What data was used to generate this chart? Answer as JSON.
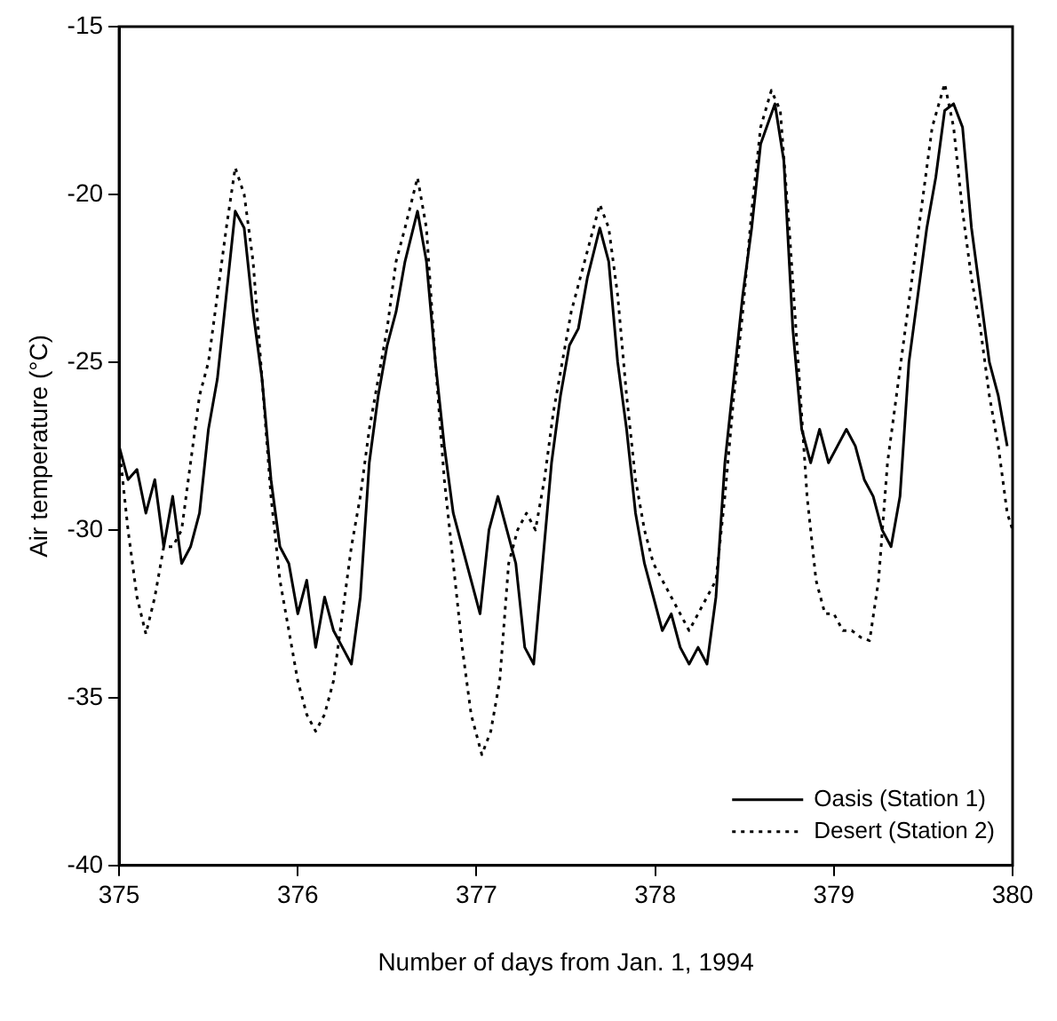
{
  "chart_data": {
    "type": "line",
    "xlabel": "Number of days from Jan. 1, 1994",
    "ylabel": "Air temperature (°C)",
    "xlim": [
      375,
      380
    ],
    "xticks": [
      375,
      376,
      377,
      378,
      379,
      380
    ],
    "ylim": [
      -40,
      -15
    ],
    "yticks": [
      -40,
      -35,
      -30,
      -25,
      -20,
      -15
    ],
    "grid": false,
    "legend": "bottom right",
    "marker": "none",
    "series": [
      {
        "name": "Oasis (Station 1)",
        "color": "#000000",
        "line_style": "solid",
        "x": [
          375,
          375.05,
          375.1,
          375.15,
          375.2,
          375.25,
          375.3,
          375.35,
          375.4,
          375.45,
          375.5,
          375.55,
          375.6,
          375.65,
          375.7,
          375.75,
          375.8,
          375.85,
          375.9,
          375.95,
          376,
          376.05,
          376.1,
          376.15,
          376.2,
          376.25,
          376.3,
          376.35,
          376.4,
          376.45,
          376.5,
          376.55,
          376.6,
          376.67,
          376.72,
          376.77,
          376.82,
          376.87,
          376.92,
          376.97,
          377.02,
          377.07,
          377.12,
          377.17,
          377.22,
          377.27,
          377.32,
          377.37,
          377.42,
          377.47,
          377.52,
          377.57,
          377.62,
          377.69,
          377.74,
          377.79,
          377.84,
          377.89,
          377.94,
          377.99,
          378.04,
          378.09,
          378.14,
          378.19,
          378.24,
          378.29,
          378.34,
          378.39,
          378.44,
          378.49,
          378.54,
          378.59,
          378.67,
          378.72,
          378.77,
          378.82,
          378.87,
          378.92,
          378.97,
          379.02,
          379.07,
          379.12,
          379.17,
          379.22,
          379.27,
          379.32,
          379.37,
          379.42,
          379.47,
          379.52,
          379.57,
          379.62,
          379.67,
          379.72,
          379.77,
          379.82,
          379.87,
          379.92,
          379.97
        ],
        "values": [
          -27.5,
          -28.5,
          -28.2,
          -29.5,
          -28.5,
          -30.5,
          -29,
          -31,
          -30.5,
          -29.5,
          -27,
          -25.5,
          -23,
          -20.5,
          -21,
          -23.5,
          -25.5,
          -28.5,
          -30.5,
          -31,
          -32.5,
          -31.5,
          -33.5,
          -32,
          -33,
          -33.5,
          -34,
          -32,
          -28,
          -26,
          -24.5,
          -23.5,
          -22,
          -20.5,
          -22,
          -25,
          -27.5,
          -29.5,
          -30.5,
          -31.5,
          -32.5,
          -30,
          -29,
          -30,
          -31,
          -33.5,
          -34,
          -31,
          -28,
          -26,
          -24.5,
          -24,
          -22.5,
          -21,
          -22,
          -25,
          -27,
          -29.5,
          -31,
          -32,
          -33,
          -32.5,
          -33.5,
          -34,
          -33.5,
          -34,
          -32,
          -28,
          -25.5,
          -23,
          -21,
          -18.5,
          -17.3,
          -19,
          -24,
          -27,
          -28,
          -27,
          -28,
          -27.5,
          -27,
          -27.5,
          -28.5,
          -29,
          -30,
          -30.5,
          -29,
          -25,
          -23,
          -21,
          -19.5,
          -17.5,
          -17.3,
          -18,
          -21,
          -23,
          -25,
          -26,
          -27.5
        ]
      },
      {
        "name": "Desert (Station 2)",
        "color": "#000000",
        "line_style": "dotted",
        "x": [
          375,
          375.05,
          375.1,
          375.15,
          375.2,
          375.25,
          375.3,
          375.35,
          375.4,
          375.45,
          375.5,
          375.55,
          375.6,
          375.65,
          375.7,
          375.75,
          375.8,
          375.85,
          375.9,
          375.95,
          376,
          376.05,
          376.1,
          376.15,
          376.2,
          376.25,
          376.3,
          376.35,
          376.4,
          376.45,
          376.5,
          376.55,
          376.6,
          376.67,
          376.72,
          376.77,
          376.82,
          376.87,
          376.92,
          376.97,
          377.03,
          377.08,
          377.13,
          377.18,
          377.23,
          377.28,
          377.33,
          377.38,
          377.43,
          377.48,
          377.53,
          377.58,
          377.63,
          377.69,
          377.74,
          377.79,
          377.84,
          377.89,
          377.94,
          377.99,
          378.04,
          378.09,
          378.14,
          378.19,
          378.24,
          378.29,
          378.34,
          378.39,
          378.44,
          378.49,
          378.54,
          378.59,
          378.65,
          378.7,
          378.75,
          378.8,
          378.85,
          378.9,
          378.95,
          379,
          379.05,
          379.1,
          379.15,
          379.2,
          379.25,
          379.3,
          379.35,
          379.4,
          379.45,
          379.5,
          379.55,
          379.62,
          379.67,
          379.72,
          379.77,
          379.82,
          379.87,
          379.92,
          379.97,
          380
        ],
        "values": [
          -27.5,
          -30,
          -32,
          -33.1,
          -32,
          -30.5,
          -30.5,
          -30,
          -28,
          -26,
          -25,
          -23,
          -21,
          -19.2,
          -20,
          -22,
          -25.5,
          -29,
          -31.5,
          -33,
          -34.5,
          -35.5,
          -36,
          -35.5,
          -34.5,
          -32.5,
          -30.5,
          -29,
          -27,
          -25.5,
          -24,
          -22,
          -21,
          -19.5,
          -21,
          -25,
          -28.5,
          -31,
          -33.5,
          -35.5,
          -36.7,
          -36,
          -34.5,
          -31,
          -30,
          -29.5,
          -30,
          -28.5,
          -26.5,
          -25,
          -23.5,
          -22.5,
          -21.5,
          -20.3,
          -21,
          -23,
          -26,
          -28.5,
          -30,
          -31,
          -31.5,
          -32,
          -32.5,
          -33,
          -32.5,
          -32,
          -31.5,
          -29,
          -26,
          -23.5,
          -20.5,
          -18,
          -16.9,
          -17.5,
          -21,
          -25,
          -29,
          -31.5,
          -32.5,
          -32.5,
          -33,
          -33,
          -33.2,
          -33.3,
          -31.5,
          -28,
          -26,
          -24,
          -22,
          -20,
          -18,
          -16.7,
          -18,
          -20.5,
          -22.5,
          -24,
          -26,
          -27.5,
          -29.5,
          -30
        ]
      }
    ]
  }
}
